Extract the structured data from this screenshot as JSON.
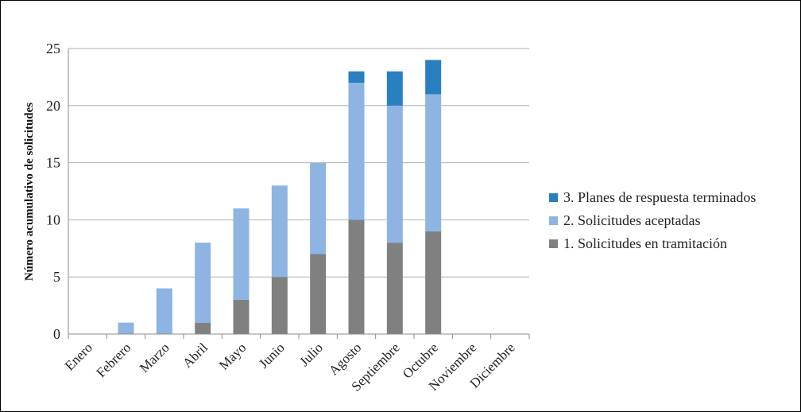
{
  "chart_data": {
    "type": "bar",
    "stacked": true,
    "ylabel": "Número acumulativo de solicitudes",
    "xlabel": "",
    "ylim": [
      0,
      25
    ],
    "yticks": [
      0,
      5,
      10,
      15,
      20,
      25
    ],
    "grid": true,
    "legend_position": "right",
    "categories": [
      "Enero",
      "Febrero",
      "Marzo",
      "Abril",
      "Mayo",
      "Junio",
      "Julio",
      "Agosto",
      "Septiembre",
      "Octubre",
      "Noviembre",
      "Diciembre"
    ],
    "series": [
      {
        "name": "1. Solicitudes en tramitación",
        "color": "#808080",
        "values": [
          0,
          0,
          0,
          1,
          3,
          5,
          7,
          10,
          8,
          9,
          0,
          0
        ]
      },
      {
        "name": "2. Solicitudes aceptadas",
        "color": "#8db4e2",
        "values": [
          0,
          1,
          4,
          7,
          8,
          8,
          8,
          12,
          12,
          12,
          0,
          0
        ]
      },
      {
        "name": "3. Planes de respuesta terminados",
        "color": "#2a7fc1",
        "values": [
          0,
          0,
          0,
          0,
          0,
          0,
          0,
          1,
          3,
          3,
          0,
          0
        ]
      }
    ],
    "legend_order": [
      2,
      1,
      0
    ]
  }
}
